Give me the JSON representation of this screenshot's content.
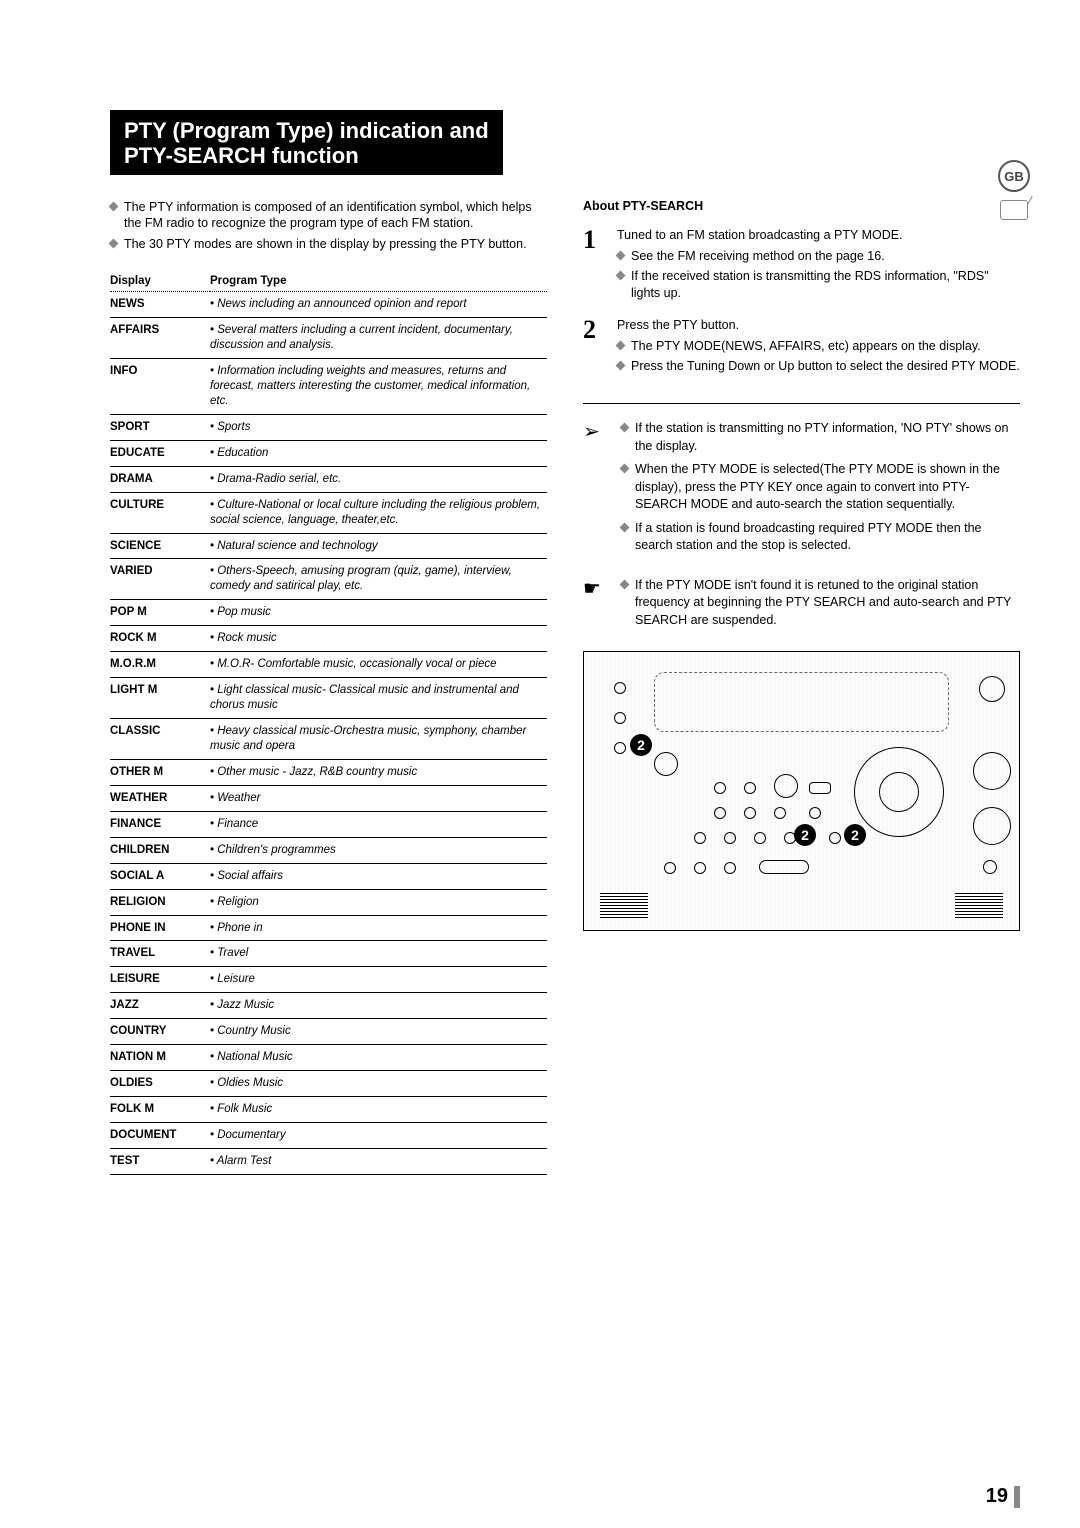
{
  "title": {
    "line1": "PTY (Program Type) indication and",
    "line2": "PTY-SEARCH function"
  },
  "intro": [
    "The PTY information is composed of an identification symbol, which helps the FM radio to recognize the program type of each FM station.",
    "The 30 PTY modes are shown in the display by pressing the PTY button."
  ],
  "table": {
    "col1": "Display",
    "col2": "Program Type",
    "rows": [
      {
        "d": "NEWS",
        "p": "• News including an announced opinion and report"
      },
      {
        "d": "AFFAIRS",
        "p": "• Several matters including a current incident, documentary, discussion and analysis."
      },
      {
        "d": "INFO",
        "p": "• Information including weights and measures, returns and forecast, matters interesting the customer, medical information, etc."
      },
      {
        "d": "SPORT",
        "p": "• Sports"
      },
      {
        "d": "EDUCATE",
        "p": "• Education"
      },
      {
        "d": "DRAMA",
        "p": "• Drama-Radio serial, etc."
      },
      {
        "d": "CULTURE",
        "p": "• Culture-National or local culture including the religious problem, social science, language, theater,etc."
      },
      {
        "d": "SCIENCE",
        "p": "• Natural science and technology"
      },
      {
        "d": "VARIED",
        "p": "• Others-Speech, amusing program (quiz, game), interview, comedy and satirical play, etc."
      },
      {
        "d": "POP M",
        "p": "• Pop music"
      },
      {
        "d": "ROCK M",
        "p": "• Rock music"
      },
      {
        "d": "M.O.R.M",
        "p": "• M.O.R- Comfortable music, occasionally vocal or piece"
      },
      {
        "d": "LIGHT M",
        "p": "• Light classical music- Classical music and instrumental and chorus music"
      },
      {
        "d": "CLASSIC",
        "p": "• Heavy classical  music-Orchestra music, symphony, chamber music and opera"
      },
      {
        "d": "OTHER M",
        "p": "• Other music - Jazz, R&B country music"
      },
      {
        "d": "WEATHER",
        "p": "• Weather"
      },
      {
        "d": "FINANCE",
        "p": "• Finance"
      },
      {
        "d": "CHILDREN",
        "p": "• Children's programmes"
      },
      {
        "d": "SOCIAL  A",
        "p": "• Social affairs"
      },
      {
        "d": "RELIGION",
        "p": "• Religion"
      },
      {
        "d": "PHONE IN",
        "p": "• Phone in"
      },
      {
        "d": "TRAVEL",
        "p": "• Travel"
      },
      {
        "d": "LEISURE",
        "p": "• Leisure"
      },
      {
        "d": "JAZZ",
        "p": "• Jazz Music"
      },
      {
        "d": "COUNTRY",
        "p": "• Country Music"
      },
      {
        "d": "NATION M",
        "p": "• National Music"
      },
      {
        "d": "OLDIES",
        "p": "• Oldies Music"
      },
      {
        "d": "FOLK M",
        "p": "• Folk Music"
      },
      {
        "d": "DOCUMENT",
        "p": "• Documentary"
      },
      {
        "d": "TEST",
        "p": "• Alarm Test"
      }
    ]
  },
  "about_head": "About PTY-SEARCH",
  "steps": [
    {
      "num": "1",
      "line": "Tuned to an FM station broadcasting a PTY MODE.",
      "subs": [
        "See the FM receiving method on the page 16.",
        "If the received station is transmitting the RDS information, \"RDS\" lights up."
      ]
    },
    {
      "num": "2",
      "line": "Press the PTY button.",
      "subs": [
        "The PTY MODE(NEWS, AFFAIRS, etc) appears on the display.",
        "Press the Tuning Down or Up button to select the desired PTY MODE."
      ]
    }
  ],
  "arrow_notes": [
    "If the station is transmitting no PTY information, 'NO PTY' shows on the display.",
    "When the PTY MODE is selected(The PTY MODE is shown in  the display), press the PTY KEY once again to convert into PTY-SEARCH MODE and auto-search the station sequentially.",
    "If a station is found broadcasting required PTY MODE then the search station and the stop is selected."
  ],
  "hand_note": "If the PTY MODE isn't found it is retuned to the original station frequency at beginning the PTY SEARCH and auto-search and PTY SEARCH are suspended.",
  "callouts": {
    "a": "2",
    "b": "2",
    "c": "2"
  },
  "gb": "GB",
  "page_number": "19"
}
